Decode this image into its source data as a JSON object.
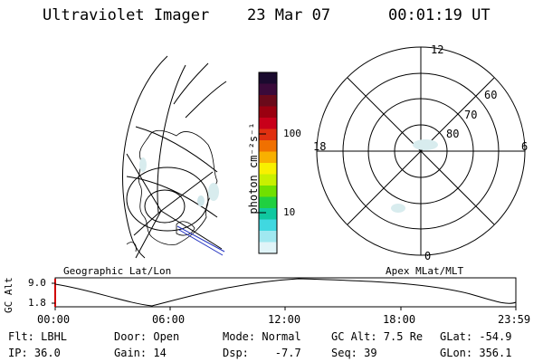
{
  "header": {
    "title": "Ultraviolet Imager",
    "date": "23 Mar 07",
    "time": "00:01:19 UT"
  },
  "colorbar": {
    "unit_label": "photon cm⁻²s⁻¹",
    "ticks": [
      "100",
      "10"
    ],
    "colors": [
      "#1a0a2e",
      "#3a0a3a",
      "#6a0a1a",
      "#9a0010",
      "#c8001a",
      "#e03010",
      "#f07000",
      "#f8b000",
      "#f8f000",
      "#c8f000",
      "#70e000",
      "#20d040",
      "#10c8a0",
      "#40d8e0",
      "#a0e8f0",
      "#e0f4f8"
    ]
  },
  "geo_panel": {
    "label": "Geographic Lat/Lon"
  },
  "apex_panel": {
    "label": "Apex MLat/MLT",
    "mlt_labels": {
      "top": "12",
      "left": "18",
      "right": "6",
      "bottom": "0"
    },
    "mlat_labels": [
      "60",
      "70",
      "80"
    ]
  },
  "altitude_plot": {
    "ylabel": "GC Alt",
    "ytick_top": "9.0",
    "ytick_bottom": "1.8",
    "xticks": [
      "00:00",
      "06:00",
      "12:00",
      "18:00",
      "23:59"
    ]
  },
  "info": {
    "flt": "Flt: LBHL",
    "ip": "IP: 36.0",
    "door": "Door: Open",
    "gain": "Gain: 14",
    "mode": "Mode: Normal",
    "dsp": "Dsp:    -7.7",
    "gcalt": "GC Alt: 7.5 Re",
    "seq": "Seq: 39",
    "glat": "GLat: -54.9",
    "glon": "GLon: 356.1"
  }
}
